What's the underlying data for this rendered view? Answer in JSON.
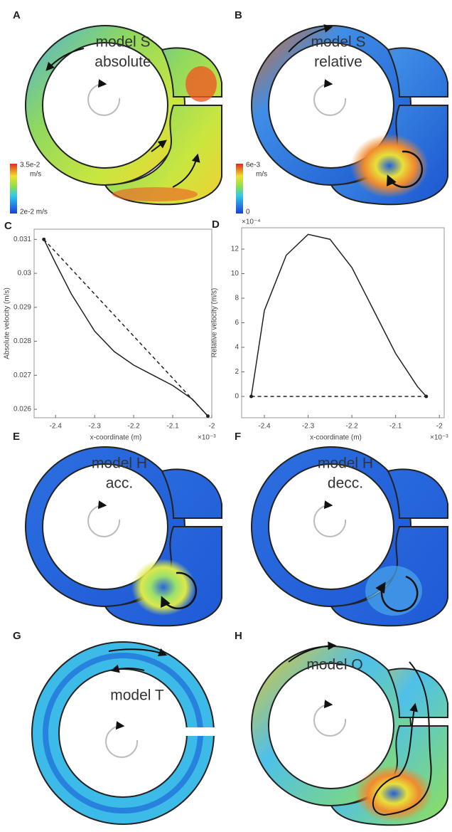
{
  "figure": {
    "panels": [
      {
        "label": "A",
        "lines": [
          "model S",
          "absolute"
        ],
        "colorbar": {
          "max": "3.5e-2",
          "unit": "m/s",
          "min": "2e-2 m/s"
        }
      },
      {
        "label": "B",
        "lines": [
          "model S",
          "relative"
        ],
        "colorbar": {
          "max": "6e-3",
          "unit": "m/s",
          "min": "0"
        }
      },
      {
        "label": "E",
        "lines": [
          "model H",
          "acc."
        ]
      },
      {
        "label": "F",
        "lines": [
          "model H",
          "decc."
        ]
      },
      {
        "label": "G",
        "lines": [
          "model T"
        ]
      },
      {
        "label": "H",
        "lines": [
          "model O"
        ]
      }
    ]
  },
  "chart_data": [
    {
      "type": "line",
      "panel_label": "C",
      "xlabel": "x-coordinate (m)",
      "ylabel": "Absolute velocity (m/s)",
      "x_multiplier": "×10⁻³",
      "xlim": [
        -2.455,
        -2.0
      ],
      "ylim": [
        0.02575,
        0.0313
      ],
      "xticks": [
        -2.4,
        -2.3,
        -2.2,
        -2.1,
        -2
      ],
      "yticks": [
        0.026,
        0.027,
        0.028,
        0.029,
        0.03,
        0.031
      ],
      "series": [
        {
          "color": "#222222",
          "dash": false,
          "markers": false,
          "x": [
            -2.43,
            -2.4,
            -2.36,
            -2.3,
            -2.25,
            -2.2,
            -2.15,
            -2.1,
            -2.05,
            -2.01
          ],
          "values": [
            0.031,
            0.0303,
            0.0294,
            0.0283,
            0.0277,
            0.0273,
            0.027,
            0.0267,
            0.0263,
            0.0258
          ]
        },
        {
          "color": "#222222",
          "dash": true,
          "markers": true,
          "x": [
            -2.43,
            -2.01
          ],
          "values": [
            0.031,
            0.0258
          ]
        }
      ]
    },
    {
      "type": "line",
      "panel_label": "D",
      "xlabel": "x-coordinate (m)",
      "ylabel": "Relative velocity (m/s)",
      "x_multiplier": "×10⁻³",
      "y_multiplier": "×10⁻⁴",
      "xlim": [
        -2.452,
        -1.989
      ],
      "ylim": [
        -1.74,
        13.74
      ],
      "xticks": [
        -2.4,
        -2.3,
        -2.2,
        -2.1,
        -2
      ],
      "yticks": [
        0,
        2,
        4,
        6,
        8,
        10,
        12
      ],
      "series": [
        {
          "color": "#222222",
          "dash": false,
          "markers": false,
          "x": [
            -2.43,
            -2.4,
            -2.35,
            -2.3,
            -2.25,
            -2.2,
            -2.15,
            -2.1,
            -2.05,
            -2.03
          ],
          "values": [
            0,
            7,
            11.5,
            13.2,
            12.8,
            10.5,
            7,
            3.5,
            0.8,
            0
          ]
        },
        {
          "color": "#222222",
          "dash": true,
          "markers": true,
          "x": [
            -2.43,
            -2.03
          ],
          "values": [
            0,
            0
          ]
        }
      ]
    }
  ]
}
